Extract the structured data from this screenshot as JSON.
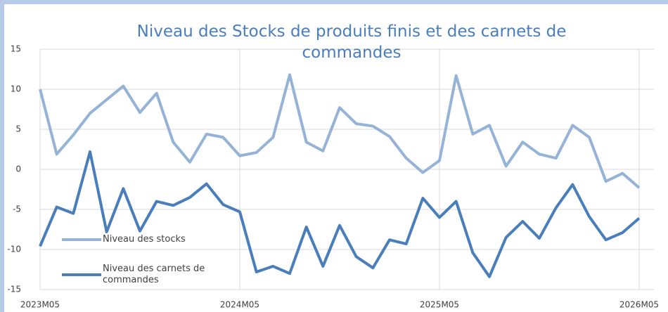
{
  "chart_data": {
    "type": "line",
    "title": "Niveau des Stocks de produits finis et des carnets de commandes",
    "categories": [
      "2023M05",
      null,
      null,
      null,
      null,
      null,
      null,
      null,
      null,
      null,
      null,
      null,
      "2024M05",
      null,
      null,
      null,
      null,
      null,
      null,
      null,
      null,
      null,
      null,
      null,
      "2025M05",
      null,
      null,
      null,
      null,
      null,
      null,
      null,
      null,
      null,
      null,
      null,
      "2026M05"
    ],
    "series": [
      {
        "name": "Niveau des stocks",
        "color": "#95b3d7",
        "values": [
          10,
          1.9,
          4.3,
          7,
          8.7,
          10.4,
          7.1,
          9.5,
          3.4,
          0.9,
          4.4,
          4,
          1.7,
          2.1,
          4,
          11.8,
          3.4,
          2.3,
          7.7,
          5.7,
          5.4,
          4.1,
          1.4,
          -0.4,
          1.1,
          11.7,
          4.4,
          5.5,
          0.4,
          3.4,
          1.9,
          1.4,
          5.5,
          4,
          -1.5,
          -0.5,
          -2.3
        ]
      },
      {
        "name": "Niveau des carnets de commandes",
        "color": "#4a7ebb",
        "values": [
          -9.6,
          -4.7,
          -5.5,
          2.2,
          -7.8,
          -2.4,
          -7.7,
          -4,
          -4.5,
          -3.5,
          -1.8,
          -4.4,
          -5.3,
          -12.8,
          -12.1,
          -13,
          -7.2,
          -12.1,
          -7,
          -10.9,
          -12.3,
          -8.8,
          -9.3,
          -3.6,
          -6,
          -4,
          -10.4,
          -13.4,
          -8.5,
          -6.5,
          -8.6,
          -4.8,
          -1.9,
          -5.9,
          -8.8,
          -7.9,
          -6.1
        ]
      }
    ],
    "ylim": [
      -15,
      15
    ],
    "yticks": [
      -15,
      -10,
      -5,
      0,
      5,
      10,
      15
    ],
    "grid": true
  }
}
